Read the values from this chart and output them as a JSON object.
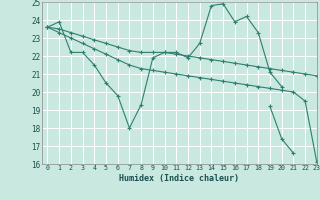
{
  "title": "",
  "xlabel": "Humidex (Indice chaleur)",
  "ylabel": "",
  "background_color": "#c8e8e0",
  "grid_color": "#ffffff",
  "line_color": "#2e7f6f",
  "xlim": [
    -0.5,
    23
  ],
  "ylim": [
    16,
    25
  ],
  "xticks": [
    0,
    1,
    2,
    3,
    4,
    5,
    6,
    7,
    8,
    9,
    10,
    11,
    12,
    13,
    14,
    15,
    16,
    17,
    18,
    19,
    20,
    21,
    22,
    23
  ],
  "yticks": [
    16,
    17,
    18,
    19,
    20,
    21,
    22,
    23,
    24,
    25
  ],
  "series": [
    [
      23.6,
      23.9,
      22.2,
      22.2,
      21.5,
      20.5,
      19.8,
      18.0,
      19.3,
      21.9,
      22.2,
      22.2,
      21.9,
      22.7,
      24.8,
      24.9,
      23.9,
      24.2,
      23.3,
      21.1,
      20.3,
      null,
      null,
      null
    ],
    [
      23.6,
      23.5,
      23.3,
      23.1,
      22.9,
      22.7,
      22.5,
      22.3,
      22.2,
      22.2,
      22.2,
      22.1,
      22.0,
      21.9,
      21.8,
      21.7,
      21.6,
      21.5,
      21.4,
      21.3,
      21.2,
      21.1,
      21.0,
      20.9
    ],
    [
      23.6,
      23.3,
      23.0,
      22.7,
      22.4,
      22.1,
      21.8,
      21.5,
      21.3,
      21.2,
      21.1,
      21.0,
      20.9,
      20.8,
      20.7,
      20.6,
      20.5,
      20.4,
      20.3,
      20.2,
      20.1,
      20.0,
      19.5,
      16.1
    ],
    [
      null,
      null,
      null,
      null,
      null,
      null,
      null,
      null,
      null,
      null,
      null,
      null,
      null,
      null,
      null,
      null,
      null,
      null,
      null,
      19.2,
      17.4,
      16.6,
      null,
      null
    ]
  ]
}
